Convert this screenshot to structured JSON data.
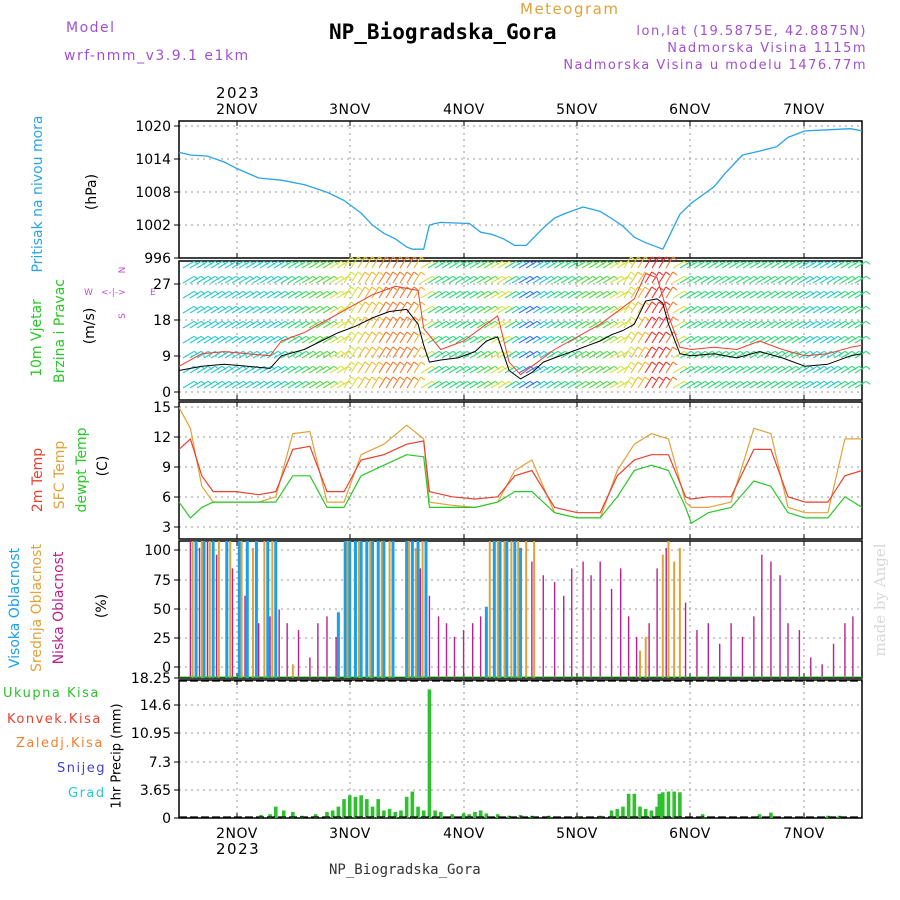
{
  "header": {
    "model_label": "Model",
    "model_value": "wrf-nmm_v3.9.1  e1km",
    "product": "Meteogram",
    "station": "NP_Biogradska_Gora",
    "coords": "lon,lat (19.5875E, 42.8875N)",
    "elevation": "Nadmorska Visina 1115m",
    "model_elevation": "Nadmorska Visina u modelu 1476.77m",
    "top_year": "2023",
    "bottom_year": "2023",
    "footer_station": "NP_Biogradska_Gora",
    "credit": "made by Angel"
  },
  "colors": {
    "pressure": "#2aa3e6",
    "wind_speed": "#000000",
    "wind_gust": "#e8412f",
    "temp_2m": "#e8412f",
    "temp_sfc": "#e0a23a",
    "dewpoint": "#28c828",
    "cloud_high": "#1aa0e8",
    "cloud_mid": "#e0a23a",
    "cloud_low": "#b8228e",
    "precip_total": "#2ec02e",
    "precip_conv": "#e8412f",
    "precip_frozen": "#f08030",
    "precip_snow": "#4040d8",
    "precip_graupel": "#28c8c8",
    "label_model": "#a050d0"
  },
  "chart_data": [
    {
      "type": "line",
      "name": "pressure",
      "ylabel_a": "Pritisak na nivou mora",
      "ylabel_b": "(hPa)",
      "ylim": [
        996,
        1021
      ],
      "yticks": [
        "996",
        "1002",
        "1008",
        "1014",
        "1020"
      ],
      "xlim": [
        1.5,
        7.5
      ],
      "xticks": [
        "2NOV",
        "3NOV",
        "4NOV",
        "5NOV",
        "6NOV",
        "7NOV"
      ],
      "grid": true,
      "series": [
        {
          "x": [
            1.5,
            1.6,
            1.75,
            1.9,
            2.0,
            2.2,
            2.4,
            2.6,
            2.8,
            2.95,
            3.1,
            3.2,
            3.3,
            3.4,
            3.5,
            3.55,
            3.65,
            3.7,
            3.75,
            3.8,
            3.9,
            4.05,
            4.15,
            4.25,
            4.35,
            4.45,
            4.55,
            4.6,
            4.7,
            4.8,
            4.9,
            5.05,
            5.2,
            5.3,
            5.4,
            5.5,
            5.6,
            5.75,
            5.8,
            5.9,
            6.0,
            6.1,
            6.2,
            6.3,
            6.45,
            6.6,
            6.75,
            6.85,
            7.0,
            7.2,
            7.4,
            7.5
          ],
          "y": [
            1015.3,
            1014.8,
            1014.6,
            1013.5,
            1012.4,
            1010.6,
            1010.2,
            1009.4,
            1008.0,
            1006.5,
            1004.2,
            1002.0,
            1000.5,
            999.5,
            998.0,
            997.6,
            997.6,
            1002.0,
            1002.3,
            1002.5,
            1002.4,
            1002.3,
            1000.7,
            1000.3,
            999.5,
            998.3,
            998.3,
            999.4,
            1001.5,
            1003.3,
            1004.2,
            1005.3,
            1004.5,
            1003.2,
            1001.8,
            999.8,
            998.8,
            997.6,
            999.7,
            1004.0,
            1006.0,
            1007.5,
            1009.0,
            1011.5,
            1014.8,
            1015.5,
            1016.3,
            1018.0,
            1019.2,
            1019.4,
            1019.6,
            1019.2
          ]
        }
      ]
    },
    {
      "type": "line",
      "name": "wind",
      "ylabel_a": "10m Vjetar",
      "ylabel_b": "Brzina i Pravac",
      "ylabel_c": "(m/s)",
      "compass": [
        "N",
        "E",
        "W",
        "S",
        "<-|->"
      ],
      "ylim": [
        -2,
        31
      ],
      "yticks": [
        "0",
        "9",
        "18",
        "27"
      ],
      "barb_palette": [
        "#9933ff",
        "#2f6ff0",
        "#29c7c7",
        "#2fd67a",
        "#56d648",
        "#d6e040",
        "#f0b82a",
        "#f07a2a",
        "#ef2e2e"
      ],
      "series": [
        {
          "name": "speed",
          "x": [
            1.5,
            1.7,
            1.9,
            2.1,
            2.3,
            2.4,
            2.6,
            2.75,
            2.9,
            3.05,
            3.2,
            3.35,
            3.5,
            3.6,
            3.65,
            3.7,
            3.8,
            3.95,
            4.1,
            4.2,
            4.3,
            4.4,
            4.5,
            4.6,
            4.7,
            4.8,
            4.9,
            5.0,
            5.1,
            5.2,
            5.3,
            5.4,
            5.5,
            5.6,
            5.7,
            5.75,
            5.8,
            5.9,
            6.0,
            6.2,
            6.4,
            6.6,
            6.8,
            7.0,
            7.2,
            7.4,
            7.5
          ],
          "y": [
            5.0,
            6.0,
            6.5,
            6.0,
            5.5,
            8.5,
            10.0,
            12.0,
            14.0,
            15.5,
            17.5,
            19.0,
            19.5,
            16.0,
            11.0,
            7.0,
            7.5,
            8.0,
            9.5,
            12.0,
            13.0,
            5.0,
            3.0,
            4.5,
            7.0,
            8.0,
            9.0,
            10.0,
            11.0,
            12.0,
            13.5,
            14.5,
            16.0,
            21.5,
            22.0,
            21.0,
            16.0,
            9.0,
            8.5,
            9.0,
            8.0,
            9.5,
            8.0,
            6.0,
            6.5,
            8.5,
            9.0
          ]
        },
        {
          "name": "gust",
          "x": [
            1.5,
            1.7,
            1.9,
            2.1,
            2.3,
            2.4,
            2.6,
            2.8,
            3.0,
            3.2,
            3.4,
            3.6,
            3.65,
            3.8,
            4.0,
            4.2,
            4.3,
            4.4,
            4.5,
            4.6,
            4.8,
            5.0,
            5.2,
            5.4,
            5.5,
            5.6,
            5.7,
            5.8,
            5.9,
            6.0,
            6.2,
            6.4,
            6.6,
            6.8,
            7.0,
            7.2,
            7.4,
            7.5
          ],
          "y": [
            6.0,
            9.0,
            9.5,
            9.0,
            8.5,
            12.0,
            14.0,
            17.0,
            20.0,
            23.0,
            25.0,
            24.0,
            15.0,
            10.0,
            12.0,
            16.0,
            18.0,
            7.0,
            4.0,
            6.0,
            10.0,
            13.0,
            16.0,
            20.0,
            22.0,
            28.0,
            27.0,
            18.0,
            10.5,
            10.0,
            10.5,
            10.0,
            12.0,
            10.0,
            8.5,
            9.0,
            10.5,
            11.0
          ]
        }
      ]
    },
    {
      "type": "line",
      "name": "temperature",
      "ylabel_a": "2m Temp",
      "ylabel_b": "SFC Temp",
      "ylabel_c": "dewpt Temp",
      "ylabel_d": "(C)",
      "ylim": [
        2,
        15
      ],
      "yticks": [
        "3",
        "6",
        "9",
        "12",
        "15"
      ],
      "series": [
        {
          "name": "2m Temp",
          "x": [
            1.5,
            1.6,
            1.7,
            1.8,
            2.0,
            2.2,
            2.35,
            2.5,
            2.65,
            2.8,
            2.95,
            3.1,
            3.3,
            3.5,
            3.65,
            3.7,
            3.9,
            4.1,
            4.3,
            4.45,
            4.6,
            4.8,
            5.0,
            5.2,
            5.35,
            5.5,
            5.65,
            5.8,
            5.95,
            6.0,
            6.15,
            6.35,
            6.55,
            6.7,
            6.85,
            7.0,
            7.2,
            7.35,
            7.5
          ],
          "y": [
            10.5,
            11.5,
            8.0,
            6.5,
            6.5,
            6.2,
            6.5,
            10.5,
            10.8,
            6.5,
            6.5,
            9.5,
            10.0,
            11.0,
            11.3,
            6.5,
            6.0,
            5.8,
            6.0,
            8.0,
            8.5,
            5.0,
            4.5,
            4.5,
            8.0,
            9.5,
            10.0,
            10.0,
            6.0,
            5.8,
            6.0,
            6.0,
            10.5,
            10.5,
            6.0,
            5.5,
            5.5,
            8.0,
            8.5
          ]
        },
        {
          "name": "SFC Temp",
          "x": [
            1.5,
            1.6,
            1.7,
            1.8,
            2.0,
            2.2,
            2.35,
            2.5,
            2.65,
            2.8,
            2.95,
            3.1,
            3.3,
            3.5,
            3.65,
            3.7,
            3.9,
            4.1,
            4.3,
            4.45,
            4.6,
            4.8,
            5.0,
            5.2,
            5.35,
            5.5,
            5.65,
            5.8,
            5.95,
            6.0,
            6.15,
            6.35,
            6.55,
            6.7,
            6.85,
            7.0,
            7.2,
            7.35,
            7.5
          ],
          "y": [
            14.5,
            12.5,
            7.0,
            5.5,
            5.5,
            5.5,
            6.0,
            12.0,
            12.2,
            5.5,
            5.5,
            10.0,
            11.0,
            12.8,
            11.5,
            5.5,
            5.2,
            5.0,
            5.5,
            8.5,
            9.5,
            4.5,
            4.0,
            4.0,
            8.5,
            11.0,
            12.0,
            11.5,
            5.5,
            5.0,
            5.0,
            5.5,
            12.5,
            12.0,
            5.0,
            4.5,
            4.5,
            11.5,
            11.5
          ]
        },
        {
          "name": "dewpt Temp",
          "x": [
            1.5,
            1.6,
            1.7,
            1.8,
            2.0,
            2.2,
            2.35,
            2.5,
            2.65,
            2.8,
            2.95,
            3.1,
            3.3,
            3.5,
            3.65,
            3.7,
            3.9,
            4.1,
            4.3,
            4.45,
            4.6,
            4.8,
            5.0,
            5.2,
            5.35,
            5.5,
            5.65,
            5.8,
            5.95,
            6.0,
            6.15,
            6.35,
            6.55,
            6.7,
            6.85,
            7.0,
            7.2,
            7.35,
            7.5
          ],
          "y": [
            5.5,
            4.0,
            5.0,
            5.5,
            5.5,
            5.5,
            5.5,
            8.0,
            8.0,
            5.0,
            5.0,
            8.0,
            9.0,
            10.0,
            9.8,
            5.0,
            5.0,
            5.0,
            5.5,
            6.5,
            6.5,
            4.5,
            4.0,
            4.0,
            6.0,
            8.5,
            9.0,
            8.5,
            5.0,
            3.5,
            4.5,
            5.0,
            7.5,
            7.0,
            4.5,
            4.0,
            4.0,
            6.0,
            5.0
          ]
        }
      ]
    },
    {
      "type": "bar",
      "name": "cloud_cover",
      "ylabel_a": "Visoka Oblacnost",
      "ylabel_b": "Srednja Oblacnost",
      "ylabel_c": "Niska Oblacnost",
      "ylabel_d": "(%)",
      "ylim": [
        0,
        100
      ],
      "yticks": [
        "0",
        "25",
        "50",
        "75",
        "100"
      ],
      "series": [
        {
          "name": "Visoka Oblacnost",
          "x": [
            1.65,
            1.72,
            1.8,
            1.92,
            2.03,
            2.1,
            2.18,
            2.28,
            2.35,
            2.9,
            2.96,
            3.0,
            3.05,
            3.1,
            3.15,
            3.2,
            3.25,
            3.3,
            3.38,
            3.5,
            3.55,
            3.6,
            3.67,
            4.2,
            4.27,
            4.32,
            4.38,
            4.45,
            4.5
          ],
          "y": [
            100,
            100,
            100,
            100,
            100,
            100,
            100,
            100,
            100,
            48,
            100,
            100,
            100,
            100,
            100,
            100,
            100,
            100,
            100,
            100,
            100,
            100,
            100,
            52,
            100,
            100,
            100,
            100,
            95
          ]
        },
        {
          "name": "Srednja Oblacnost",
          "x": [
            1.62,
            1.7,
            1.77,
            1.85,
            1.95,
            2.05,
            2.15,
            2.25,
            2.32,
            2.5,
            2.98,
            3.08,
            3.18,
            3.28,
            3.35,
            3.52,
            3.58,
            3.64,
            4.23,
            4.3,
            4.36,
            4.42,
            4.48,
            4.55,
            4.62,
            5.55,
            5.6,
            5.75,
            5.8,
            5.85,
            5.9
          ],
          "y": [
            100,
            100,
            100,
            100,
            100,
            100,
            95,
            100,
            100,
            10,
            100,
            100,
            100,
            100,
            100,
            100,
            95,
            100,
            100,
            100,
            100,
            100,
            100,
            100,
            100,
            20,
            30,
            90,
            100,
            85,
            95
          ]
        },
        {
          "name": "Niska Oblacnost",
          "x": [
            1.6,
            1.68,
            1.75,
            1.83,
            1.97,
            2.08,
            2.2,
            2.3,
            2.38,
            2.45,
            2.55,
            2.65,
            2.72,
            2.8,
            2.88,
            3.62,
            3.7,
            3.78,
            3.85,
            3.92,
            4.0,
            4.08,
            4.15,
            4.6,
            4.7,
            4.8,
            4.88,
            4.95,
            5.05,
            5.12,
            5.2,
            5.3,
            5.38,
            5.45,
            5.52,
            5.63,
            5.7,
            5.78,
            5.95,
            6.05,
            6.15,
            6.25,
            6.35,
            6.45,
            6.55,
            6.62,
            6.7,
            6.78,
            6.85,
            6.95,
            7.05,
            7.15,
            7.25,
            7.35,
            7.42
          ],
          "y": [
            100,
            95,
            100,
            90,
            80,
            60,
            40,
            45,
            50,
            40,
            35,
            15,
            40,
            45,
            30,
            80,
            60,
            45,
            40,
            30,
            35,
            40,
            45,
            85,
            75,
            70,
            60,
            80,
            85,
            75,
            85,
            65,
            80,
            45,
            30,
            40,
            80,
            95,
            55,
            35,
            40,
            25,
            40,
            30,
            45,
            90,
            85,
            75,
            40,
            35,
            15,
            10,
            25,
            40,
            45
          ]
        }
      ]
    },
    {
      "type": "bar",
      "name": "precipitation",
      "ylabel_a": "1hr Precip (mm)",
      "legend": [
        "Ukupna Kisa",
        "Konvek.Kisa",
        "Zaledj.Kisa",
        "Snijeg",
        "Grad"
      ],
      "ylim": [
        0,
        18.25
      ],
      "yticks": [
        "0",
        "3.65",
        "7.3",
        "10.95",
        "14.6",
        "18.25"
      ],
      "series": [
        {
          "name": "Ukupna Kisa",
          "x": [
            2.22,
            2.3,
            2.35,
            2.42,
            2.5,
            2.58,
            2.7,
            2.8,
            2.85,
            2.9,
            2.95,
            3.0,
            3.05,
            3.1,
            3.15,
            3.2,
            3.25,
            3.3,
            3.35,
            3.4,
            3.45,
            3.5,
            3.55,
            3.6,
            3.65,
            3.7,
            3.75,
            3.8,
            3.9,
            4.0,
            4.05,
            4.1,
            4.15,
            4.2,
            4.3,
            4.4,
            4.5,
            4.6,
            4.75,
            5.0,
            5.2,
            5.3,
            5.35,
            5.4,
            5.45,
            5.5,
            5.55,
            5.6,
            5.65,
            5.7,
            5.72,
            5.75,
            5.8,
            5.85,
            5.9,
            6.1,
            6.6,
            6.7,
            7.2,
            7.3
          ],
          "y": [
            0.4,
            0.5,
            1.5,
            1.0,
            0.8,
            0.3,
            0.5,
            0.8,
            1.0,
            1.5,
            2.5,
            3.0,
            2.8,
            3.0,
            2.5,
            1.5,
            2.5,
            1.0,
            1.2,
            0.8,
            1.0,
            2.8,
            3.5,
            1.5,
            1.0,
            17.0,
            1.0,
            0.8,
            0.5,
            0.6,
            0.5,
            0.8,
            1.0,
            0.6,
            0.5,
            0.3,
            0.4,
            0.3,
            0.3,
            0.2,
            0.3,
            1.0,
            1.2,
            1.5,
            3.2,
            3.2,
            1.5,
            1.2,
            1.0,
            1.5,
            3.2,
            3.4,
            3.5,
            3.5,
            3.4,
            0.5,
            0.5,
            0.7,
            0.3,
            0.3
          ]
        }
      ]
    }
  ]
}
